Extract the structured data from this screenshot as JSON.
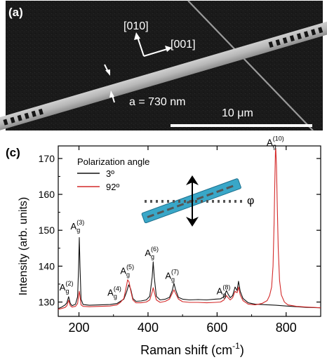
{
  "panel_a": {
    "label": "(a)",
    "direction_010": "[010]",
    "direction_001": "[001]",
    "width_annotation": "a = 730 nm",
    "scalebar_label": "10 μm"
  },
  "panel_c": {
    "label": "(c)",
    "legend_title": "Polarization angle",
    "phi_symbol": "φ",
    "peak_base": "A",
    "peak_sub": "g",
    "chart_data": {
      "type": "line",
      "xlabel": "Raman shift (cm",
      "xlabel_sup": "-1",
      "xlabel_close": ")",
      "ylabel": "Intensity (arb. units)",
      "xlim": [
        140,
        900
      ],
      "ylim": [
        126,
        173.5
      ],
      "xticks": [
        200,
        400,
        600,
        800
      ],
      "yticks": [
        130,
        140,
        150,
        160,
        170
      ],
      "legend_position": "top-left",
      "series": [
        {
          "name": "3º",
          "color": "#111111",
          "points": [
            [
              140,
              128.2
            ],
            [
              150,
              128.6
            ],
            [
              160,
              129.2
            ],
            [
              165,
              129.8
            ],
            [
              170,
              131.5
            ],
            [
              175,
              129.6
            ],
            [
              180,
              129.0
            ],
            [
              190,
              129.4
            ],
            [
              196,
              131.5
            ],
            [
              199,
              139.5
            ],
            [
              201,
              148.0
            ],
            [
              203,
              140.0
            ],
            [
              206,
              130.8
            ],
            [
              212,
              129.3
            ],
            [
              230,
              129.1
            ],
            [
              260,
              129.2
            ],
            [
              290,
              129.3
            ],
            [
              310,
              129.6
            ],
            [
              320,
              130.2
            ],
            [
              330,
              130.8
            ],
            [
              338,
              132.8
            ],
            [
              344,
              134.8
            ],
            [
              350,
              133.6
            ],
            [
              356,
              131.0
            ],
            [
              365,
              130.2
            ],
            [
              380,
              130.3
            ],
            [
              395,
              130.6
            ],
            [
              405,
              131.6
            ],
            [
              412,
              137.0
            ],
            [
              415,
              141.2
            ],
            [
              418,
              137.0
            ],
            [
              424,
              131.6
            ],
            [
              435,
              130.6
            ],
            [
              450,
              130.8
            ],
            [
              462,
              131.3
            ],
            [
              470,
              133.2
            ],
            [
              475,
              135.2
            ],
            [
              480,
              133.4
            ],
            [
              488,
              131.3
            ],
            [
              500,
              130.8
            ],
            [
              520,
              130.6
            ],
            [
              545,
              130.7
            ],
            [
              570,
              130.6
            ],
            [
              595,
              130.8
            ],
            [
              610,
              130.9
            ],
            [
              620,
              131.5
            ],
            [
              627,
              133.2
            ],
            [
              632,
              132.2
            ],
            [
              638,
              131.2
            ],
            [
              645,
              131.8
            ],
            [
              652,
              134.2
            ],
            [
              658,
              133.2
            ],
            [
              662,
              135.8
            ],
            [
              667,
              133.0
            ],
            [
              675,
              131.0
            ],
            [
              690,
              129.8
            ],
            [
              710,
              129.4
            ],
            [
              730,
              129.3
            ],
            [
              750,
              129.2
            ],
            [
              770,
              129.1
            ],
            [
              800,
              128.9
            ],
            [
              830,
              128.7
            ],
            [
              860,
              128.5
            ],
            [
              900,
              128.4
            ]
          ]
        },
        {
          "name": "92º",
          "color": "#d42a2a",
          "points": [
            [
              140,
              128.0
            ],
            [
              150,
              128.2
            ],
            [
              160,
              128.5
            ],
            [
              165,
              129.0
            ],
            [
              170,
              130.5
            ],
            [
              175,
              129.0
            ],
            [
              180,
              128.6
            ],
            [
              190,
              128.8
            ],
            [
              196,
              129.6
            ],
            [
              199,
              131.8
            ],
            [
              201,
              133.0
            ],
            [
              203,
              131.6
            ],
            [
              206,
              129.2
            ],
            [
              212,
              128.8
            ],
            [
              230,
              128.7
            ],
            [
              260,
              128.8
            ],
            [
              290,
              128.9
            ],
            [
              310,
              129.2
            ],
            [
              320,
              129.9
            ],
            [
              330,
              131.0
            ],
            [
              336,
              133.8
            ],
            [
              341,
              136.2
            ],
            [
              345,
              135.6
            ],
            [
              350,
              133.2
            ],
            [
              356,
              130.6
            ],
            [
              365,
              129.8
            ],
            [
              380,
              129.8
            ],
            [
              395,
              130.0
            ],
            [
              405,
              130.6
            ],
            [
              412,
              132.8
            ],
            [
              415,
              134.0
            ],
            [
              418,
              132.8
            ],
            [
              424,
              130.6
            ],
            [
              435,
              129.9
            ],
            [
              450,
              130.2
            ],
            [
              462,
              130.8
            ],
            [
              470,
              132.4
            ],
            [
              475,
              133.4
            ],
            [
              480,
              132.4
            ],
            [
              488,
              130.8
            ],
            [
              500,
              130.1
            ],
            [
              520,
              129.9
            ],
            [
              545,
              129.9
            ],
            [
              570,
              129.8
            ],
            [
              595,
              129.9
            ],
            [
              610,
              130.0
            ],
            [
              620,
              130.6
            ],
            [
              627,
              131.8
            ],
            [
              632,
              131.2
            ],
            [
              638,
              130.6
            ],
            [
              645,
              131.2
            ],
            [
              652,
              133.0
            ],
            [
              658,
              132.6
            ],
            [
              662,
              134.2
            ],
            [
              667,
              132.0
            ],
            [
              675,
              130.4
            ],
            [
              690,
              129.4
            ],
            [
              710,
              129.2
            ],
            [
              730,
              129.6
            ],
            [
              745,
              130.4
            ],
            [
              752,
              131.8
            ],
            [
              758,
              134.2
            ],
            [
              762,
              140.0
            ],
            [
              765,
              152.0
            ],
            [
              767,
              163.0
            ],
            [
              769,
              172.0
            ],
            [
              770,
              172.8
            ],
            [
              772,
              168.0
            ],
            [
              774,
              158.0
            ],
            [
              777,
              145.0
            ],
            [
              781,
              136.0
            ],
            [
              786,
              132.0
            ],
            [
              795,
              130.0
            ],
            [
              805,
              129.2
            ],
            [
              830,
              128.8
            ],
            [
              860,
              128.6
            ],
            [
              900,
              128.4
            ]
          ]
        }
      ],
      "peaks": [
        {
          "label": "(2)",
          "x": 168,
          "y": 133.2
        },
        {
          "label": "(3)",
          "x": 200,
          "y": 150.2
        },
        {
          "label": "(4)",
          "x": 307,
          "y": 131.8
        },
        {
          "label": "(5)",
          "x": 344,
          "y": 137.8
        },
        {
          "label": "(6)",
          "x": 415,
          "y": 142.8
        },
        {
          "label": "(7)",
          "x": 474,
          "y": 136.5
        },
        {
          "label": "(8)",
          "x": 623,
          "y": 132.2
        },
        {
          "label": "(10)",
          "x": 768,
          "y": 173.6
        }
      ]
    }
  }
}
